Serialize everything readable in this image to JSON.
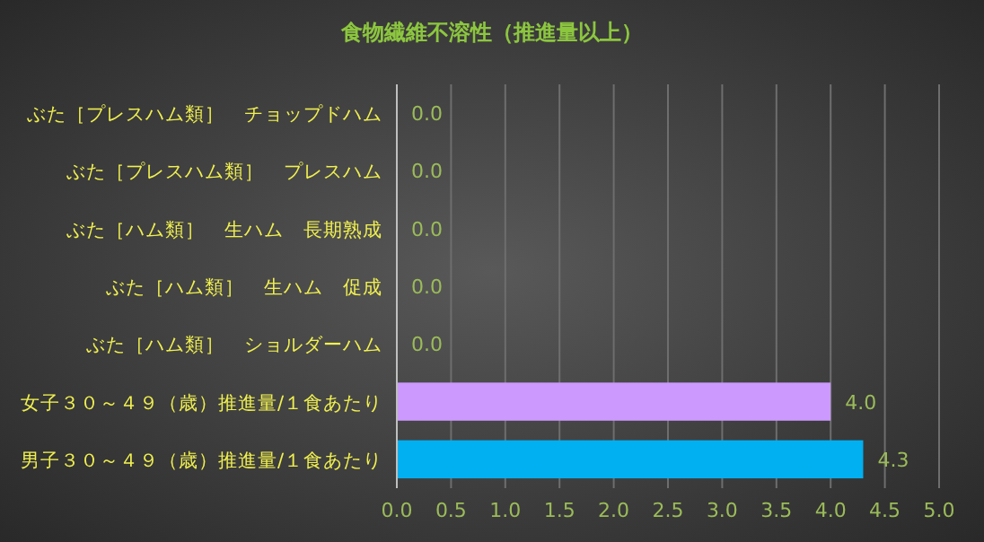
{
  "chart_data": {
    "type": "bar",
    "orientation": "horizontal",
    "title": "食物繊維不溶性（推進量以上）",
    "categories": [
      "ぶた［プレスハム類］　チョップドハム",
      "ぶた［プレスハム類］　プレスハム",
      "ぶた［ハム類］　生ハム　長期熟成",
      "ぶた［ハム類］　生ハム　促成",
      "ぶた［ハム類］　ショルダーハム",
      "女子３０～４９（歳）推進量/１食あたり",
      "男子３０～４９（歳）推進量/１食あたり"
    ],
    "values": [
      0,
      0,
      0,
      0,
      0,
      4.0,
      4.3
    ],
    "value_labels": [
      "0.0",
      "0.0",
      "0.0",
      "0.0",
      "0.0",
      "4.0",
      "4.3"
    ],
    "colors": [
      "#9bbb59",
      "#9bbb59",
      "#9bbb59",
      "#9bbb59",
      "#9bbb59",
      "#cc99ff",
      "#00b0f0"
    ],
    "xlim": [
      0,
      5
    ],
    "xticks": [
      {
        "value": 0,
        "label": "0.0"
      },
      {
        "value": 0.5,
        "label": "0.5"
      },
      {
        "value": 1,
        "label": "1.0"
      },
      {
        "value": 1.5,
        "label": "1.5"
      },
      {
        "value": 2,
        "label": "2.0"
      },
      {
        "value": 2.5,
        "label": "2.5"
      },
      {
        "value": 3,
        "label": "3.0"
      },
      {
        "value": 3.5,
        "label": "3.5"
      },
      {
        "value": 4,
        "label": "4.0"
      },
      {
        "value": 4.5,
        "label": "4.5"
      },
      {
        "value": 5,
        "label": "5.0"
      }
    ],
    "grid": "x"
  }
}
